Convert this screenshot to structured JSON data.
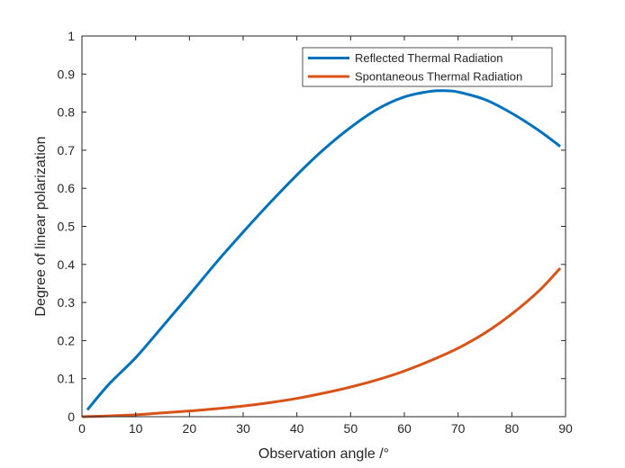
{
  "chart_data": {
    "type": "line",
    "title": "",
    "xlabel": "Observation angle /°",
    "ylabel": "Degree of linear polarization",
    "xlim": [
      0,
      90
    ],
    "ylim": [
      0,
      1
    ],
    "xticks": [
      0,
      10,
      20,
      30,
      40,
      50,
      60,
      70,
      80,
      90
    ],
    "yticks": [
      0,
      0.1,
      0.2,
      0.3,
      0.4,
      0.5,
      0.6,
      0.7,
      0.8,
      0.9,
      1
    ],
    "xtick_labels": [
      "0",
      "10",
      "20",
      "30",
      "40",
      "50",
      "60",
      "70",
      "80",
      "90"
    ],
    "ytick_labels": [
      "0",
      "0.1",
      "0.2",
      "0.3",
      "0.4",
      "0.5",
      "0.6",
      "0.7",
      "0.8",
      "0.9",
      "1"
    ],
    "grid": false,
    "legend_position": "top-right",
    "series": [
      {
        "name": "Reflected Thermal Radiation",
        "color": "#0072BD",
        "x": [
          1,
          5,
          10,
          15,
          20,
          25,
          30,
          35,
          40,
          45,
          50,
          55,
          60,
          65,
          68,
          70,
          75,
          80,
          85,
          89
        ],
        "y": [
          0.018,
          0.085,
          0.155,
          0.237,
          0.32,
          0.405,
          0.485,
          0.562,
          0.635,
          0.702,
          0.76,
          0.808,
          0.84,
          0.855,
          0.856,
          0.853,
          0.833,
          0.797,
          0.752,
          0.71
        ]
      },
      {
        "name": "Spontaneous Thermal Radiation",
        "color": "#D95319",
        "x": [
          0,
          5,
          10,
          15,
          20,
          25,
          30,
          35,
          40,
          45,
          50,
          55,
          60,
          65,
          70,
          75,
          80,
          85,
          89
        ],
        "y": [
          0,
          0.002,
          0.005,
          0.01,
          0.015,
          0.021,
          0.028,
          0.037,
          0.048,
          0.062,
          0.078,
          0.097,
          0.12,
          0.148,
          0.18,
          0.22,
          0.27,
          0.33,
          0.39
        ]
      }
    ]
  }
}
